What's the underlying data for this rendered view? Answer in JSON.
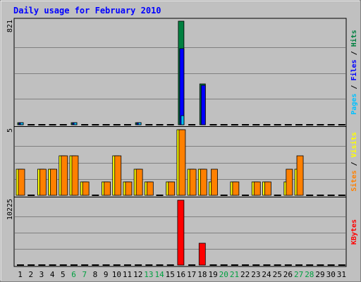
{
  "chart_data": {
    "type": "bar",
    "title": "Daily usage for February 2010",
    "categories": [
      "1",
      "2",
      "3",
      "4",
      "5",
      "6",
      "7",
      "8",
      "9",
      "10",
      "11",
      "12",
      "13",
      "14",
      "15",
      "16",
      "17",
      "18",
      "19",
      "20",
      "21",
      "22",
      "23",
      "24",
      "25",
      "26",
      "27",
      "28",
      "29",
      "30",
      "31"
    ],
    "weekend_days": [
      "6",
      "7",
      "13",
      "14",
      "20",
      "21",
      "27",
      "28"
    ],
    "panels": [
      {
        "id": "top",
        "max_label": "821",
        "ylim": [
          0,
          821
        ],
        "legend": [
          "Pages",
          "Files",
          "Hits"
        ],
        "series": [
          {
            "name": "Hits",
            "color": "#008040",
            "values": [
              15,
              0,
              0,
              0,
              0,
              15,
              0,
              0,
              0,
              0,
              0,
              15,
              0,
              0,
              0,
              821,
              0,
              325,
              0,
              0,
              0,
              0,
              0,
              0,
              0,
              0,
              0,
              0,
              0,
              0,
              0
            ]
          },
          {
            "name": "Files",
            "color": "#0000ff",
            "values": [
              15,
              0,
              0,
              0,
              0,
              15,
              0,
              0,
              0,
              0,
              0,
              15,
              0,
              0,
              0,
              603,
              0,
              315,
              0,
              0,
              0,
              0,
              0,
              0,
              0,
              0,
              0,
              0,
              0,
              0,
              0
            ]
          },
          {
            "name": "Pages",
            "color": "#00c0ff",
            "values": [
              15,
              0,
              0,
              0,
              0,
              15,
              0,
              0,
              0,
              0,
              0,
              15,
              0,
              0,
              0,
              70,
              0,
              0,
              0,
              0,
              0,
              0,
              0,
              0,
              0,
              0,
              0,
              0,
              0,
              0,
              0
            ]
          }
        ]
      },
      {
        "id": "middle",
        "max_label": "5",
        "ylim": [
          0,
          5
        ],
        "legend": [
          "Sites",
          "Visits"
        ],
        "series": [
          {
            "name": "Visits",
            "color": "#ffff00",
            "values": [
              2,
              0,
              2,
              2,
              3,
              3,
              1,
              0,
              1,
              3,
              1,
              2,
              1,
              0,
              1,
              5,
              2,
              2,
              1,
              0,
              1,
              0,
              1,
              1,
              0,
              1,
              2,
              0,
              0,
              0,
              0
            ]
          },
          {
            "name": "Sites",
            "color": "#ff8000",
            "values": [
              2,
              0,
              2,
              2,
              3,
              3,
              1,
              0,
              1,
              3,
              1,
              2,
              1,
              0,
              1,
              5,
              2,
              2,
              2,
              0,
              1,
              0,
              1,
              1,
              0,
              2,
              3,
              0,
              0,
              0,
              0
            ]
          }
        ]
      },
      {
        "id": "bottom",
        "max_label": "10225",
        "ylim": [
          0,
          10225
        ],
        "legend": [
          "KBytes"
        ],
        "series": [
          {
            "name": "KBytes",
            "color": "#ff0000",
            "values": [
              0,
              0,
              0,
              0,
              0,
              0,
              0,
              0,
              0,
              0,
              0,
              0,
              0,
              0,
              0,
              10225,
              0,
              3500,
              0,
              0,
              0,
              0,
              0,
              0,
              0,
              0,
              0,
              0,
              0,
              0,
              0
            ]
          }
        ]
      }
    ],
    "grid": true,
    "legend_placement": "right"
  },
  "colors": {
    "background": "#c0c0c0",
    "title": "#0000ff",
    "axis_label": "#000000",
    "weekend_label": "#00a040",
    "gridline": "#808080",
    "zero_marker": "#000000",
    "separator": "#000000"
  }
}
